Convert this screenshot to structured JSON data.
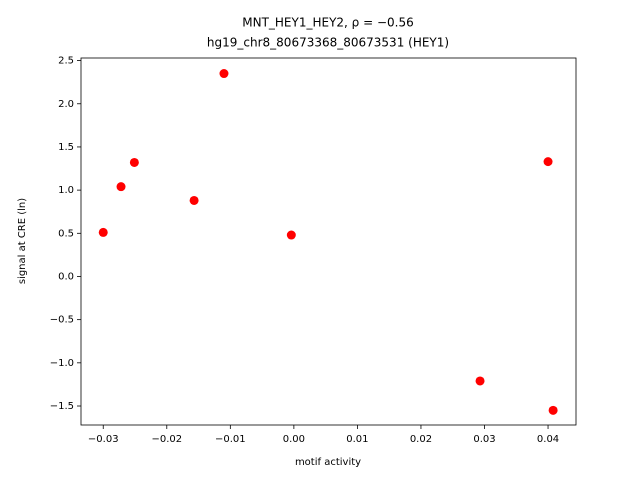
{
  "chart_data": {
    "type": "scatter",
    "title": "MNT_HEY1_HEY2, ρ = −0.56",
    "subtitle": "hg19_chr8_80673368_80673531 (HEY1)",
    "x_label": "motif activity",
    "y_label": "signal at CRE (ln)",
    "color": "#ff0000",
    "x": [
      -0.03,
      -0.0272,
      -0.0251,
      -0.0157,
      -0.011,
      -0.0004,
      0.0293,
      0.04,
      0.0408
    ],
    "values": [
      0.51,
      1.04,
      1.32,
      0.88,
      2.35,
      0.48,
      -1.21,
      1.33,
      -1.55
    ],
    "xlim": [
      -0.0335,
      0.0444
    ],
    "ylim": [
      -1.72,
      2.53
    ],
    "xticks": [
      {
        "value": -0.03,
        "label": "−0.03"
      },
      {
        "value": -0.02,
        "label": "−0.02"
      },
      {
        "value": -0.01,
        "label": "−0.01"
      },
      {
        "value": 0,
        "label": "0.00"
      },
      0.01,
      0.02,
      0.03,
      0.04
    ],
    "yticks": [
      {
        "value": -1.5,
        "label": "−1.5"
      },
      {
        "value": -1,
        "label": "−1.0"
      },
      {
        "value": -0.5,
        "label": "−0.5"
      },
      {
        "value": 0,
        "label": "0.0"
      },
      0.5,
      {
        "value": 1,
        "label": "1.0"
      },
      1.5,
      {
        "value": 2,
        "label": "2.0"
      },
      2.5
    ]
  }
}
